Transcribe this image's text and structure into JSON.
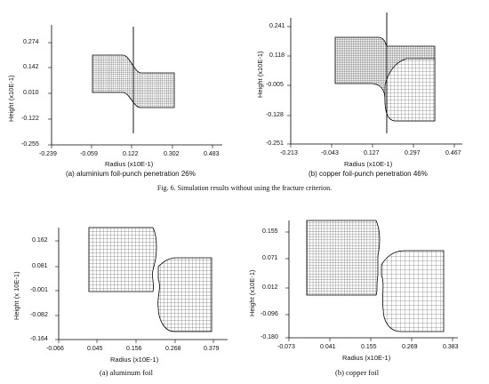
{
  "figure_caption": "Fig. 6. Simulation results without using the fracture criterion.",
  "panels": [
    {
      "caption": "(a) aluminium foil-punch penetration 26%",
      "xlabel": "Radius (x10E-1)",
      "ylabel": "Height (x10E-1)",
      "xticks": [
        "-0.239",
        "-0.059",
        "0.122",
        "0.302",
        "0.483"
      ],
      "yticks": [
        "0.274",
        "0.142",
        "0.010",
        "-0.122",
        "-0.255"
      ]
    },
    {
      "caption": "(b) copper foil-punch penetration 46%",
      "xlabel": "Radius (x10E-1)",
      "ylabel": "Height (x10E-1)",
      "xticks": [
        "-0.213",
        "-0.043",
        "0.127",
        "0.297",
        "0.467"
      ],
      "yticks": [
        "0.241",
        "0.118",
        "-0.005",
        "-0.128",
        "-0.251"
      ]
    },
    {
      "caption": "(a)  aluminum foil",
      "xlabel": "Radius (x10E-1)",
      "ylabel": "Height (x 10E-1)",
      "xticks": [
        "-0.066",
        "0.045",
        "0.156",
        "0.268",
        "0.379"
      ],
      "yticks": [
        "0.162",
        "0.081",
        "-0.001",
        "-0.082",
        "-0.164"
      ]
    },
    {
      "caption": "(b)  copper  foil",
      "xlabel": "Radius (x10E-1)",
      "ylabel": "Height (x10E-1)",
      "xticks": [
        "-0.073",
        "0.041",
        "0.155",
        "0.269",
        "0.383"
      ],
      "yticks": [
        "0.155",
        "0.071",
        "0.012",
        "-0.096",
        "-0.180"
      ]
    }
  ]
}
